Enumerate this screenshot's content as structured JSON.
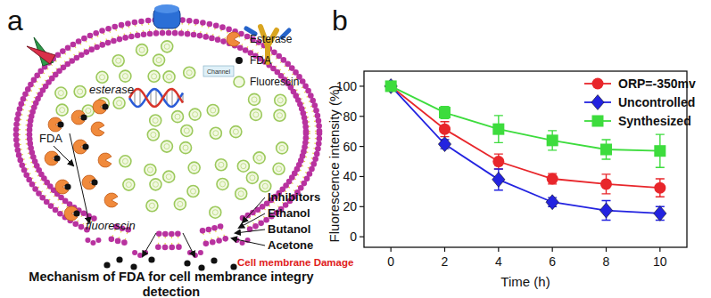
{
  "diagram": {
    "panel_label": "a",
    "key": [
      "Esterase",
      "FDA",
      "Fluorescin"
    ],
    "inner_labels": [
      "FDA",
      "esterase",
      "fluorescin"
    ],
    "channel_label": "Channel",
    "agents": [
      "Inhibitors",
      "Ethanol",
      "Butanol",
      "Acetone"
    ],
    "damage_label": "Cell membrane Damage",
    "caption": [
      "Mechanism of FDA for cell membrance integry",
      "detection"
    ]
  },
  "chart_data": {
    "type": "line",
    "annotations": [
      "b"
    ],
    "xlabel": "Time (h)",
    "ylabel": "Fluorescence intensity (%)",
    "x": [
      0,
      2,
      4,
      6,
      8,
      10
    ],
    "xlim": [
      -1,
      11
    ],
    "xticks": [
      0,
      2,
      4,
      6,
      8,
      10
    ],
    "ylim": [
      -7,
      110
    ],
    "yticks": [
      0,
      20,
      40,
      60,
      80,
      100
    ],
    "grid": false,
    "legend": "upper right",
    "series": [
      {
        "name": "ORP=-350mv",
        "color": "#e8262b",
        "marker": "circle",
        "line_style": "solid",
        "values": [
          100,
          71.5,
          50,
          38.5,
          35,
          32.5
        ],
        "errors": [
          1,
          5,
          5,
          3.5,
          6.5,
          6
        ]
      },
      {
        "name": "Uncontrolled",
        "color": "#2323e0",
        "marker": "diamond",
        "line_style": "solid",
        "values": [
          100,
          61.5,
          38,
          23,
          17.5,
          15.5
        ],
        "errors": [
          1,
          3,
          7,
          3,
          6.5,
          4.5
        ]
      },
      {
        "name": "Synthesized",
        "color": "#3ddc3d",
        "marker": "square",
        "line_style": "solid",
        "values": [
          100,
          82.5,
          71.5,
          64,
          58,
          57
        ],
        "errors": [
          1,
          4,
          9,
          6.5,
          6.5,
          11
        ]
      }
    ]
  }
}
